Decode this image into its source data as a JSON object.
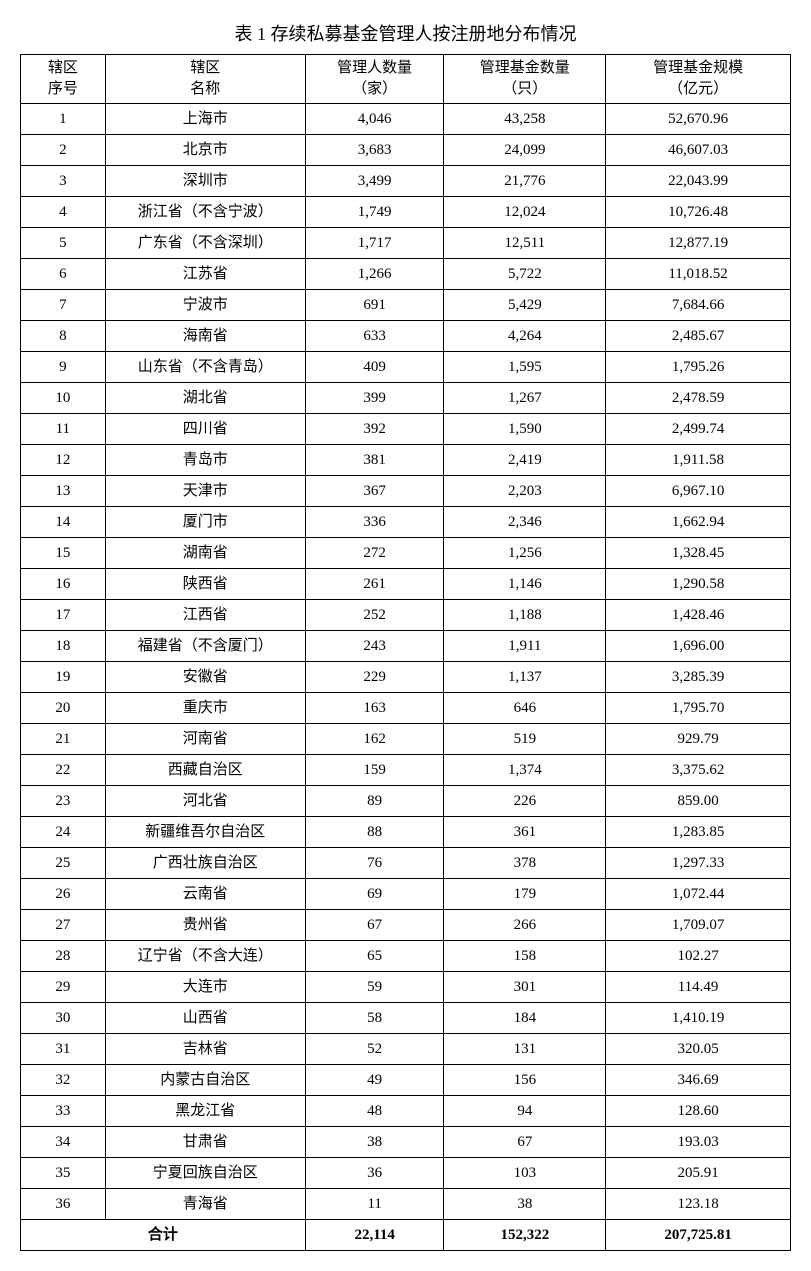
{
  "title": "表 1  存续私募基金管理人按注册地分布情况",
  "headers": {
    "col1_line1": "辖区",
    "col1_line2": "序号",
    "col2_line1": "辖区",
    "col2_line2": "名称",
    "col3_line1": "管理人数量",
    "col3_line2": "（家）",
    "col4_line1": "管理基金数量",
    "col4_line2": "（只）",
    "col5_line1": "管理基金规模",
    "col5_line2": "（亿元）"
  },
  "rows": [
    {
      "seq": "1",
      "name": "上海市",
      "mgr": "4,046",
      "funds": "43,258",
      "aum": "52,670.96"
    },
    {
      "seq": "2",
      "name": "北京市",
      "mgr": "3,683",
      "funds": "24,099",
      "aum": "46,607.03"
    },
    {
      "seq": "3",
      "name": "深圳市",
      "mgr": "3,499",
      "funds": "21,776",
      "aum": "22,043.99"
    },
    {
      "seq": "4",
      "name": "浙江省（不含宁波）",
      "mgr": "1,749",
      "funds": "12,024",
      "aum": "10,726.48"
    },
    {
      "seq": "5",
      "name": "广东省（不含深圳）",
      "mgr": "1,717",
      "funds": "12,511",
      "aum": "12,877.19"
    },
    {
      "seq": "6",
      "name": "江苏省",
      "mgr": "1,266",
      "funds": "5,722",
      "aum": "11,018.52"
    },
    {
      "seq": "7",
      "name": "宁波市",
      "mgr": "691",
      "funds": "5,429",
      "aum": "7,684.66"
    },
    {
      "seq": "8",
      "name": "海南省",
      "mgr": "633",
      "funds": "4,264",
      "aum": "2,485.67"
    },
    {
      "seq": "9",
      "name": "山东省（不含青岛）",
      "mgr": "409",
      "funds": "1,595",
      "aum": "1,795.26"
    },
    {
      "seq": "10",
      "name": "湖北省",
      "mgr": "399",
      "funds": "1,267",
      "aum": "2,478.59"
    },
    {
      "seq": "11",
      "name": "四川省",
      "mgr": "392",
      "funds": "1,590",
      "aum": "2,499.74"
    },
    {
      "seq": "12",
      "name": "青岛市",
      "mgr": "381",
      "funds": "2,419",
      "aum": "1,911.58"
    },
    {
      "seq": "13",
      "name": "天津市",
      "mgr": "367",
      "funds": "2,203",
      "aum": "6,967.10"
    },
    {
      "seq": "14",
      "name": "厦门市",
      "mgr": "336",
      "funds": "2,346",
      "aum": "1,662.94"
    },
    {
      "seq": "15",
      "name": "湖南省",
      "mgr": "272",
      "funds": "1,256",
      "aum": "1,328.45"
    },
    {
      "seq": "16",
      "name": "陕西省",
      "mgr": "261",
      "funds": "1,146",
      "aum": "1,290.58"
    },
    {
      "seq": "17",
      "name": "江西省",
      "mgr": "252",
      "funds": "1,188",
      "aum": "1,428.46"
    },
    {
      "seq": "18",
      "name": "福建省（不含厦门）",
      "mgr": "243",
      "funds": "1,911",
      "aum": "1,696.00"
    },
    {
      "seq": "19",
      "name": "安徽省",
      "mgr": "229",
      "funds": "1,137",
      "aum": "3,285.39"
    },
    {
      "seq": "20",
      "name": "重庆市",
      "mgr": "163",
      "funds": "646",
      "aum": "1,795.70"
    },
    {
      "seq": "21",
      "name": "河南省",
      "mgr": "162",
      "funds": "519",
      "aum": "929.79"
    },
    {
      "seq": "22",
      "name": "西藏自治区",
      "mgr": "159",
      "funds": "1,374",
      "aum": "3,375.62"
    },
    {
      "seq": "23",
      "name": "河北省",
      "mgr": "89",
      "funds": "226",
      "aum": "859.00"
    },
    {
      "seq": "24",
      "name": "新疆维吾尔自治区",
      "mgr": "88",
      "funds": "361",
      "aum": "1,283.85"
    },
    {
      "seq": "25",
      "name": "广西壮族自治区",
      "mgr": "76",
      "funds": "378",
      "aum": "1,297.33"
    },
    {
      "seq": "26",
      "name": "云南省",
      "mgr": "69",
      "funds": "179",
      "aum": "1,072.44"
    },
    {
      "seq": "27",
      "name": "贵州省",
      "mgr": "67",
      "funds": "266",
      "aum": "1,709.07"
    },
    {
      "seq": "28",
      "name": "辽宁省（不含大连）",
      "mgr": "65",
      "funds": "158",
      "aum": "102.27"
    },
    {
      "seq": "29",
      "name": "大连市",
      "mgr": "59",
      "funds": "301",
      "aum": "114.49"
    },
    {
      "seq": "30",
      "name": "山西省",
      "mgr": "58",
      "funds": "184",
      "aum": "1,410.19"
    },
    {
      "seq": "31",
      "name": "吉林省",
      "mgr": "52",
      "funds": "131",
      "aum": "320.05"
    },
    {
      "seq": "32",
      "name": "内蒙古自治区",
      "mgr": "49",
      "funds": "156",
      "aum": "346.69"
    },
    {
      "seq": "33",
      "name": "黑龙江省",
      "mgr": "48",
      "funds": "94",
      "aum": "128.60"
    },
    {
      "seq": "34",
      "name": "甘肃省",
      "mgr": "38",
      "funds": "67",
      "aum": "193.03"
    },
    {
      "seq": "35",
      "name": "宁夏回族自治区",
      "mgr": "36",
      "funds": "103",
      "aum": "205.91"
    },
    {
      "seq": "36",
      "name": "青海省",
      "mgr": "11",
      "funds": "38",
      "aum": "123.18"
    }
  ],
  "total": {
    "label": "合计",
    "mgr": "22,114",
    "funds": "152,322",
    "aum": "207,725.81"
  }
}
